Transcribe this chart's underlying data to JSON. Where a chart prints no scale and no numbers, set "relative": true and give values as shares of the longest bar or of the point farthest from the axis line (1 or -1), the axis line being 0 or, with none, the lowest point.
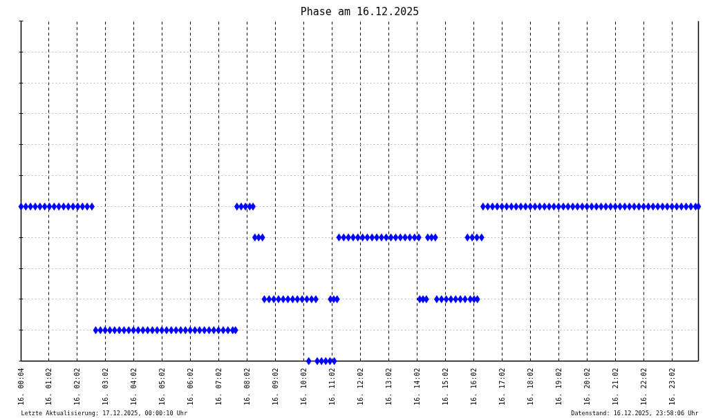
{
  "chart_data": {
    "type": "scatter",
    "title": "Phase am 16.12.2025",
    "annotations": [
      "Letzte Aktualisierung: 17.12.2025, 00:00:10 Uhr",
      "Datenstand: 16.12.2025, 23:58:06 Uhr"
    ],
    "relative": true,
    "x": [
      "2025-12-16T00:04",
      "2025-12-16T00:14",
      "2025-12-16T00:24",
      "2025-12-16T00:34",
      "2025-12-16T00:44",
      "2025-12-16T00:54",
      "2025-12-16T01:04",
      "2025-12-16T01:14",
      "2025-12-16T01:24",
      "2025-12-16T01:34",
      "2025-12-16T01:44",
      "2025-12-16T01:54",
      "2025-12-16T02:04",
      "2025-12-16T02:14",
      "2025-12-16T02:24",
      "2025-12-16T02:34",
      "2025-12-16T02:42",
      "2025-12-16T02:52",
      "2025-12-16T03:02",
      "2025-12-16T03:12",
      "2025-12-16T03:22",
      "2025-12-16T03:32",
      "2025-12-16T03:42",
      "2025-12-16T03:52",
      "2025-12-16T04:02",
      "2025-12-16T04:12",
      "2025-12-16T04:22",
      "2025-12-16T04:32",
      "2025-12-16T04:42",
      "2025-12-16T04:52",
      "2025-12-16T05:02",
      "2025-12-16T05:12",
      "2025-12-16T05:22",
      "2025-12-16T05:32",
      "2025-12-16T05:42",
      "2025-12-16T05:52",
      "2025-12-16T06:02",
      "2025-12-16T06:12",
      "2025-12-16T06:22",
      "2025-12-16T06:32",
      "2025-12-16T06:42",
      "2025-12-16T06:52",
      "2025-12-16T07:02",
      "2025-12-16T07:12",
      "2025-12-16T07:22",
      "2025-12-16T07:32",
      "2025-12-16T07:38",
      "2025-12-16T07:41",
      "2025-12-16T07:50",
      "2025-12-16T07:59",
      "2025-12-16T08:08",
      "2025-12-16T08:15",
      "2025-12-16T08:19",
      "2025-12-16T08:27",
      "2025-12-16T08:35",
      "2025-12-16T08:39",
      "2025-12-16T08:49",
      "2025-12-16T08:59",
      "2025-12-16T09:09",
      "2025-12-16T09:19",
      "2025-12-16T09:29",
      "2025-12-16T09:39",
      "2025-12-16T09:49",
      "2025-12-16T09:59",
      "2025-12-16T10:09",
      "2025-12-16T10:13",
      "2025-12-16T10:19",
      "2025-12-16T10:28",
      "2025-12-16T10:31",
      "2025-12-16T10:40",
      "2025-12-16T10:49",
      "2025-12-16T10:58",
      "2025-12-16T10:59",
      "2025-12-16T11:06",
      "2025-12-16T11:07",
      "2025-12-16T11:13",
      "2025-12-16T11:17",
      "2025-12-16T11:27",
      "2025-12-16T11:37",
      "2025-12-16T11:47",
      "2025-12-16T11:57",
      "2025-12-16T12:07",
      "2025-12-16T12:17",
      "2025-12-16T12:27",
      "2025-12-16T12:37",
      "2025-12-16T12:47",
      "2025-12-16T12:57",
      "2025-12-16T13:07",
      "2025-12-16T13:17",
      "2025-12-16T13:27",
      "2025-12-16T13:37",
      "2025-12-16T13:47",
      "2025-12-16T13:57",
      "2025-12-16T14:06",
      "2025-12-16T14:08",
      "2025-12-16T14:15",
      "2025-12-16T14:22",
      "2025-12-16T14:25",
      "2025-12-16T14:33",
      "2025-12-16T14:41",
      "2025-12-16T14:44",
      "2025-12-16T14:54",
      "2025-12-16T15:04",
      "2025-12-16T15:14",
      "2025-12-16T15:24",
      "2025-12-16T15:34",
      "2025-12-16T15:44",
      "2025-12-16T15:49",
      "2025-12-16T15:55",
      "2025-12-16T15:59",
      "2025-12-16T16:03",
      "2025-12-16T16:09",
      "2025-12-16T16:10",
      "2025-12-16T16:19",
      "2025-12-16T16:22",
      "2025-12-16T16:32",
      "2025-12-16T16:42",
      "2025-12-16T16:52",
      "2025-12-16T17:02",
      "2025-12-16T17:12",
      "2025-12-16T17:22",
      "2025-12-16T17:32",
      "2025-12-16T17:42",
      "2025-12-16T17:52",
      "2025-12-16T18:02",
      "2025-12-16T18:12",
      "2025-12-16T18:22",
      "2025-12-16T18:32",
      "2025-12-16T18:42",
      "2025-12-16T18:52",
      "2025-12-16T19:02",
      "2025-12-16T19:12",
      "2025-12-16T19:22",
      "2025-12-16T19:32",
      "2025-12-16T19:42",
      "2025-12-16T19:52",
      "2025-12-16T20:02",
      "2025-12-16T20:12",
      "2025-12-16T20:22",
      "2025-12-16T20:32",
      "2025-12-16T20:42",
      "2025-12-16T20:52",
      "2025-12-16T21:02",
      "2025-12-16T21:12",
      "2025-12-16T21:22",
      "2025-12-16T21:32",
      "2025-12-16T21:42",
      "2025-12-16T21:52",
      "2025-12-16T22:02",
      "2025-12-16T22:12",
      "2025-12-16T22:22",
      "2025-12-16T22:32",
      "2025-12-16T22:42",
      "2025-12-16T22:52",
      "2025-12-16T23:02",
      "2025-12-16T23:12",
      "2025-12-16T23:22",
      "2025-12-16T23:32",
      "2025-12-16T23:42",
      "2025-12-16T23:52",
      "2025-12-16T23:58"
    ],
    "values": [
      1,
      1,
      1,
      1,
      1,
      1,
      1,
      1,
      1,
      1,
      1,
      1,
      1,
      1,
      1,
      1,
      0.2,
      0.2,
      0.2,
      0.2,
      0.2,
      0.2,
      0.2,
      0.2,
      0.2,
      0.2,
      0.2,
      0.2,
      0.2,
      0.2,
      0.2,
      0.2,
      0.2,
      0.2,
      0.2,
      0.2,
      0.2,
      0.2,
      0.2,
      0.2,
      0.2,
      0.2,
      0.2,
      0.2,
      0.2,
      0.2,
      0.2,
      1,
      1,
      1,
      1,
      1,
      0.8,
      0.8,
      0.8,
      0.4,
      0.4,
      0.4,
      0.4,
      0.4,
      0.4,
      0.4,
      0.4,
      0.4,
      0.4,
      0,
      0.4,
      0.4,
      0,
      0,
      0,
      0,
      0.4,
      0.4,
      0,
      0.4,
      0.8,
      0.8,
      0.8,
      0.8,
      0.8,
      0.8,
      0.8,
      0.8,
      0.8,
      0.8,
      0.8,
      0.8,
      0.8,
      0.8,
      0.8,
      0.8,
      0.8,
      0.8,
      0.4,
      0.4,
      0.4,
      0.8,
      0.8,
      0.8,
      0.4,
      0.4,
      0.4,
      0.4,
      0.4,
      0.4,
      0.4,
      0.8,
      0.4,
      0.8,
      0.4,
      0.8,
      0.4,
      0.8,
      1,
      1,
      1,
      1,
      1,
      1,
      1,
      1,
      1,
      1,
      1,
      1,
      1,
      1,
      1,
      1,
      1,
      1,
      1,
      1,
      1,
      1,
      1,
      1,
      1,
      1,
      1,
      1,
      1,
      1,
      1,
      1,
      1,
      1,
      1,
      1,
      1,
      1,
      1,
      1,
      1,
      1,
      1,
      1,
      1,
      1,
      1
    ],
    "color": "#0000ff",
    "marker": "diamond",
    "xlim": [
      "2025-12-16T00:04",
      "2025-12-16T23:58"
    ],
    "xticks": [
      {
        "value": "2025-12-16T00:04",
        "label": "16. 00:04"
      },
      {
        "value": "2025-12-16T01:02",
        "label": "16. 01:02"
      },
      {
        "value": "2025-12-16T02:02",
        "label": "16. 02:02"
      },
      {
        "value": "2025-12-16T03:02",
        "label": "16. 03:02"
      },
      {
        "value": "2025-12-16T04:02",
        "label": "16. 04:02"
      },
      {
        "value": "2025-12-16T05:02",
        "label": "16. 05:02"
      },
      {
        "value": "2025-12-16T06:02",
        "label": "16. 06:02"
      },
      {
        "value": "2025-12-16T07:02",
        "label": "16. 07:02"
      },
      {
        "value": "2025-12-16T08:02",
        "label": "16. 08:02"
      },
      {
        "value": "2025-12-16T09:02",
        "label": "16. 09:02"
      },
      {
        "value": "2025-12-16T10:02",
        "label": "16. 10:02"
      },
      {
        "value": "2025-12-16T11:02",
        "label": "16. 11:02"
      },
      {
        "value": "2025-12-16T12:02",
        "label": "16. 12:02"
      },
      {
        "value": "2025-12-16T13:02",
        "label": "16. 13:02"
      },
      {
        "value": "2025-12-16T14:02",
        "label": "16. 14:02"
      },
      {
        "value": "2025-12-16T15:02",
        "label": "16. 15:02"
      },
      {
        "value": "2025-12-16T16:02",
        "label": "16. 16:02"
      },
      {
        "value": "2025-12-16T17:02",
        "label": "16. 17:02"
      },
      {
        "value": "2025-12-16T18:02",
        "label": "16. 18:02"
      },
      {
        "value": "2025-12-16T19:02",
        "label": "16. 19:02"
      },
      {
        "value": "2025-12-16T20:02",
        "label": "16. 20:02"
      },
      {
        "value": "2025-12-16T21:02",
        "label": "16. 21:02"
      },
      {
        "value": "2025-12-16T22:02",
        "label": "16. 22:02"
      },
      {
        "value": "2025-12-16T23:02",
        "label": "16. 23:02"
      }
    ],
    "grid": true
  }
}
